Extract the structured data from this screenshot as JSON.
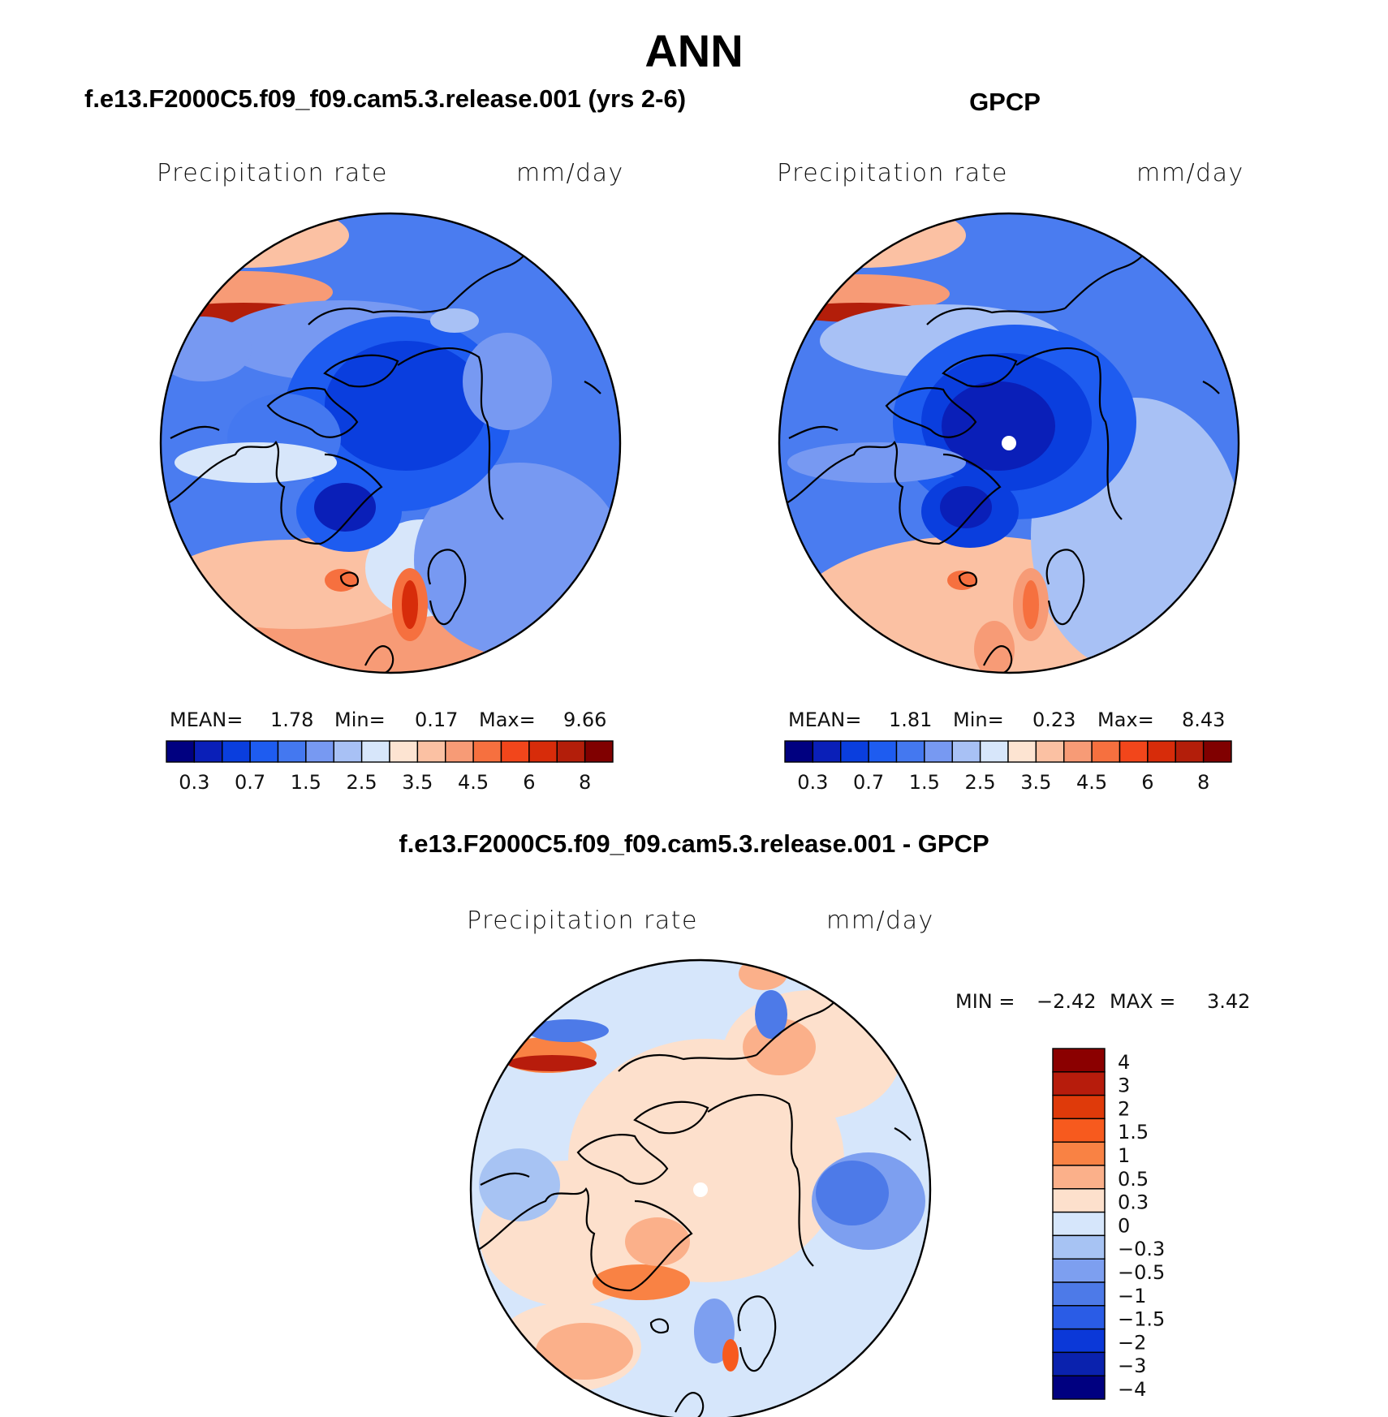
{
  "chart_data": [
    {
      "type": "heatmap",
      "projection": "north polar stereographic",
      "title": "f.e13.F2000C5.f09_f09.cam5.3.release.001 (yrs 2-6)",
      "variable": "Precipitation  rate",
      "units": "mm/day",
      "stats": {
        "mean_label": "MEAN=",
        "mean": "1.78",
        "min_label": "Min=",
        "min": "0.17",
        "max_label": "Max=",
        "max": "9.66"
      },
      "colorbar_ticks": [
        "0.3",
        "0.7",
        "1.5",
        "2.5",
        "3.5",
        "4.5",
        "6",
        "8"
      ]
    },
    {
      "type": "heatmap",
      "projection": "north polar stereographic",
      "title": "GPCP",
      "variable": "Precipitation  rate",
      "units": "mm/day",
      "stats": {
        "mean_label": "MEAN=",
        "mean": "1.81",
        "min_label": "Min=",
        "min": "0.23",
        "max_label": "Max=",
        "max": "8.43"
      },
      "colorbar_ticks": [
        "0.3",
        "0.7",
        "1.5",
        "2.5",
        "3.5",
        "4.5",
        "6",
        "8"
      ]
    },
    {
      "type": "heatmap",
      "projection": "north polar stereographic",
      "title": "f.e13.F2000C5.f09_f09.cam5.3.release.001 - GPCP",
      "variable": "Precipitation  rate",
      "units": "mm/day",
      "stats": {
        "min_label": "MIN =",
        "min": "−2.42",
        "max_label": "MAX =",
        "max": "3.42"
      },
      "colorbar_ticks": [
        "4",
        "3",
        "2",
        "1.5",
        "1",
        "0.5",
        "0.3",
        "0",
        "−0.3",
        "−0.5",
        "−1",
        "−1.5",
        "−2",
        "−3",
        "−4"
      ]
    }
  ],
  "season": "ANN",
  "colors": {
    "abs_scale": [
      "#000080",
      "#0a1fb8",
      "#0a3ede",
      "#1e5cf0",
      "#4478f0",
      "#7799f2",
      "#a8c1f5",
      "#d7e6fa",
      "#fde4d2",
      "#fbc1a3",
      "#f79b76",
      "#f6703f",
      "#f2461b",
      "#d72c0a",
      "#b31e0a",
      "#800000"
    ],
    "diff_scale": [
      "#8b0000",
      "#b71c0c",
      "#df3a0a",
      "#f75a1e",
      "#f98244",
      "#fbb08a",
      "#fde0cc",
      "#d6e6fb",
      "#a7c3f3",
      "#7d9ff0",
      "#4d7ae8",
      "#2a5ce6",
      "#0b38d8",
      "#0a22ae",
      "#000080"
    ]
  }
}
